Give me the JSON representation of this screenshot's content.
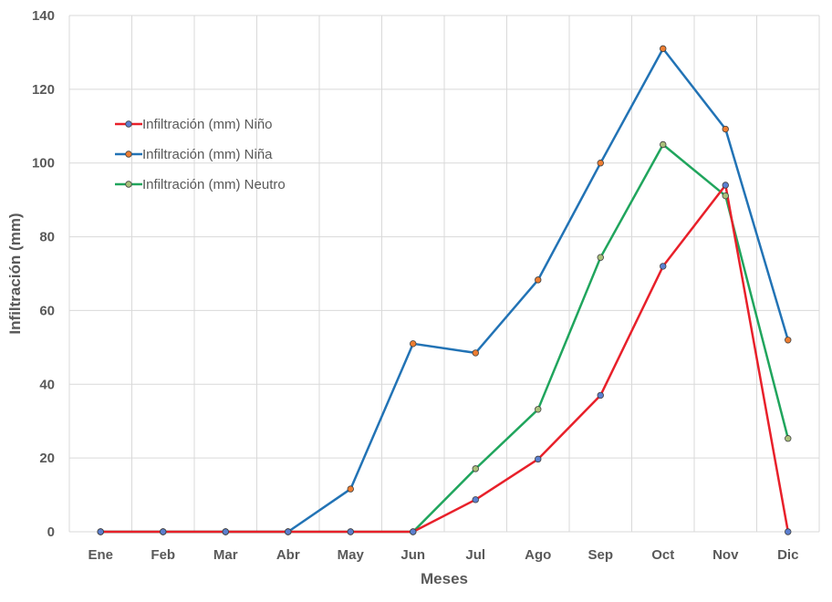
{
  "chart_data": {
    "type": "line",
    "title": "",
    "xlabel": "Meses",
    "ylabel": "Infiltración (mm)",
    "categories": [
      "Ene",
      "Feb",
      "Mar",
      "Abr",
      "May",
      "Jun",
      "Jul",
      "Ago",
      "Sep",
      "Oct",
      "Nov",
      "Dic"
    ],
    "ylim": [
      0,
      140
    ],
    "yticks": [
      0,
      20,
      40,
      60,
      80,
      100,
      120,
      140
    ],
    "grid": true,
    "legend_position": "top-left",
    "series": [
      {
        "name": "Infiltración (mm) Niño",
        "color": "#e8202a",
        "marker": "#5b7fd0",
        "values": [
          0,
          0,
          0,
          0,
          0,
          0,
          8.7,
          19.7,
          37,
          72,
          94,
          0
        ]
      },
      {
        "name": "Infiltración (mm) Niña",
        "color": "#2273b5",
        "marker": "#ed7d31",
        "values": [
          0,
          0,
          0,
          0,
          11.6,
          51,
          48.5,
          68.3,
          100,
          131,
          109.2,
          52
        ]
      },
      {
        "name": "Infiltración (mm) Neutro",
        "color": "#20a55d",
        "marker": "#a9c07a",
        "values": [
          0,
          0,
          0,
          0,
          0,
          0,
          17.1,
          33.2,
          74.4,
          105,
          91.1,
          25.3
        ]
      }
    ]
  }
}
